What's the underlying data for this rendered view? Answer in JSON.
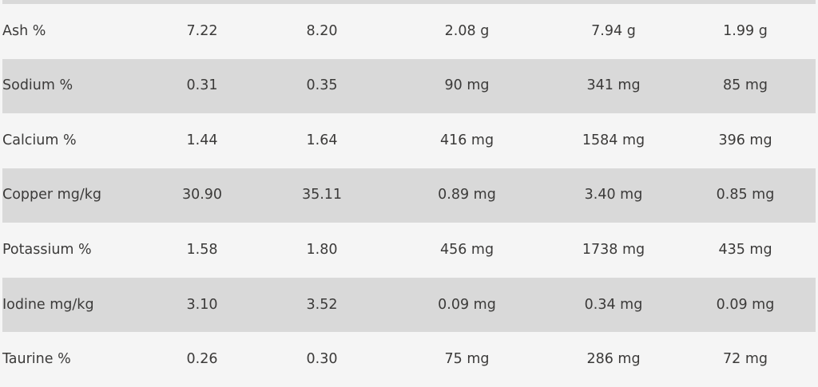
{
  "table": {
    "rows": [
      {
        "label": "Ash %",
        "values": [
          "7.22",
          "8.20",
          "2.08 g",
          "7.94 g",
          "1.99 g"
        ]
      },
      {
        "label": "Sodium %",
        "values": [
          "0.31",
          "0.35",
          "90 mg",
          "341 mg",
          "85 mg"
        ]
      },
      {
        "label": "Calcium %",
        "values": [
          "1.44",
          "1.64",
          "416 mg",
          "1584 mg",
          "396 mg"
        ]
      },
      {
        "label": "Copper mg/kg",
        "values": [
          "30.90",
          "35.11",
          "0.89 mg",
          "3.40 mg",
          "0.85 mg"
        ]
      },
      {
        "label": "Potassium %",
        "values": [
          "1.58",
          "1.80",
          "456 mg",
          "1738 mg",
          "435 mg"
        ]
      },
      {
        "label": "Iodine mg/kg",
        "values": [
          "3.10",
          "3.52",
          "0.09 mg",
          "0.34 mg",
          "0.09 mg"
        ]
      },
      {
        "label": "Taurine %",
        "values": [
          "0.26",
          "0.30",
          "75 mg",
          "286 mg",
          "72 mg"
        ]
      }
    ],
    "colors": {
      "stripe": "#d9d9d9",
      "row_light": "#f5f5f5",
      "text": "#3b3a39"
    }
  },
  "chart_data": {
    "type": "table",
    "categories": [
      "Ash %",
      "Sodium %",
      "Calcium %",
      "Copper mg/kg",
      "Potassium %",
      "Iodine mg/kg",
      "Taurine %"
    ],
    "series": [
      {
        "name": "column-2",
        "values": [
          "7.22",
          "0.31",
          "1.44",
          "30.90",
          "1.58",
          "3.10",
          "0.26"
        ]
      },
      {
        "name": "column-3",
        "values": [
          "8.20",
          "0.35",
          "1.64",
          "35.11",
          "1.80",
          "3.52",
          "0.30"
        ]
      },
      {
        "name": "column-4",
        "values": [
          "2.08 g",
          "90 mg",
          "416 mg",
          "0.89 mg",
          "456 mg",
          "0.09 mg",
          "75 mg"
        ]
      },
      {
        "name": "column-5",
        "values": [
          "7.94 g",
          "341 mg",
          "1584 mg",
          "3.40 mg",
          "1738 mg",
          "0.34 mg",
          "286 mg"
        ]
      },
      {
        "name": "column-6",
        "values": [
          "1.99 g",
          "85 mg",
          "396 mg",
          "0.85 mg",
          "435 mg",
          "0.09 mg",
          "72 mg"
        ]
      }
    ]
  }
}
